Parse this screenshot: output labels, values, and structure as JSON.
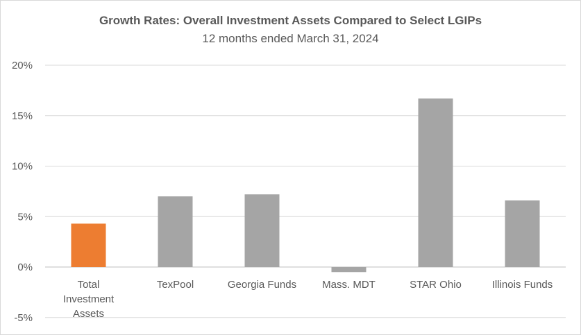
{
  "chart_data": {
    "type": "bar",
    "title": "Growth Rates:  Overall Investment Assets Compared to  Select LGIPs",
    "subtitle": "12 months ended March 31, 2024",
    "categories": [
      "Total Investment Assets",
      "TexPool",
      "Georgia Funds",
      "Mass. MDT",
      "STAR  Ohio",
      "Illinois Funds"
    ],
    "category_lines": [
      [
        "Total",
        "Investment",
        "Assets"
      ],
      [
        "TexPool"
      ],
      [
        "Georgia Funds"
      ],
      [
        "Mass. MDT"
      ],
      [
        "STAR  Ohio"
      ],
      [
        "Illinois Funds"
      ]
    ],
    "values": [
      4.3,
      7.0,
      7.2,
      -0.5,
      16.7,
      6.6
    ],
    "unit": "%",
    "ylim": [
      -5,
      20
    ],
    "yticks": [
      -5,
      0,
      5,
      10,
      15,
      20
    ],
    "ytick_labels": [
      "-5%",
      "0%",
      "5%",
      "10%",
      "15%",
      "20%"
    ],
    "bar_colors": [
      "#ED7D31",
      "#A5A5A5",
      "#A5A5A5",
      "#A5A5A5",
      "#A5A5A5",
      "#A5A5A5"
    ],
    "grid": true,
    "legend": "none"
  }
}
